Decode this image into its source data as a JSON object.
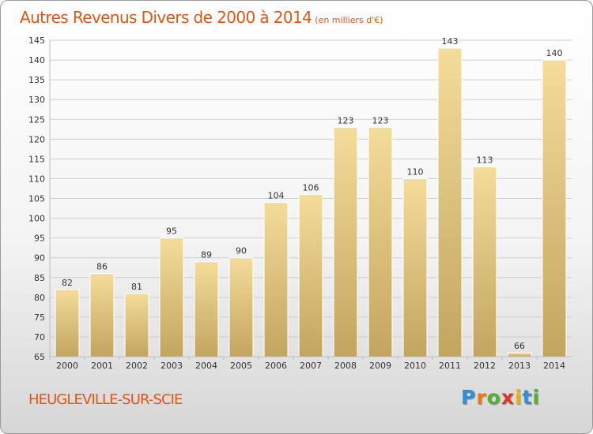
{
  "title": "Autres Revenus Divers de 2000 à 2014",
  "unit_note": "(en milliers d'€)",
  "town": "HEUGLEVILLE-SUR-SCIE",
  "brand": {
    "letters": [
      "P",
      "r",
      "o",
      "x",
      "i",
      "t",
      "i"
    ]
  },
  "colors": {
    "title": "#e8540f",
    "bar_top": "#f4dc9a",
    "bar_bottom": "#c2a55f",
    "grid": "#d0d0d0"
  },
  "chart_data": {
    "type": "bar",
    "categories": [
      "2000",
      "2001",
      "2002",
      "2003",
      "2004",
      "2005",
      "2006",
      "2007",
      "2008",
      "2009",
      "2010",
      "2011",
      "2012",
      "2013",
      "2014"
    ],
    "values": [
      82,
      86,
      81,
      95,
      89,
      90,
      104,
      106,
      123,
      123,
      110,
      143,
      113,
      66,
      140
    ],
    "ylim": [
      65,
      145
    ],
    "yticks": [
      65,
      70,
      75,
      80,
      85,
      90,
      95,
      100,
      105,
      110,
      115,
      120,
      125,
      130,
      135,
      140,
      145
    ],
    "grid": true,
    "xlabel": "",
    "ylabel": ""
  }
}
